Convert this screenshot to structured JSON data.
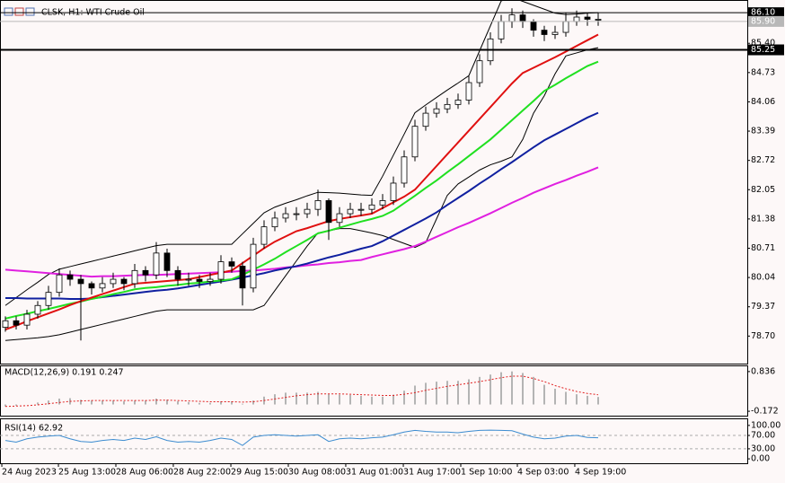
{
  "chart_data": [
    {
      "type": "candlestick",
      "title": "CLSK, H1: WTI Crude Oil",
      "open": [
        78.9,
        79.05,
        78.95,
        79.2,
        79.4,
        79.7,
        80.1,
        80.0,
        79.9,
        79.8,
        79.9,
        80.0,
        79.9,
        80.2,
        80.1,
        80.6,
        80.2,
        80.0,
        80.0,
        79.95,
        80.0,
        80.4,
        80.3,
        79.8,
        80.8,
        81.2,
        81.4,
        81.5,
        81.5,
        81.6,
        81.8,
        81.3,
        81.5,
        81.6,
        81.6,
        81.7,
        81.8,
        82.2,
        82.8,
        83.5,
        83.8,
        83.9,
        84.0,
        84.1,
        84.5,
        85.0,
        85.5,
        85.9,
        86.05,
        85.9,
        85.7,
        85.6,
        85.65,
        85.9,
        86.0,
        85.95
      ],
      "high": [
        79.15,
        79.15,
        79.3,
        79.5,
        79.85,
        80.25,
        80.2,
        80.1,
        79.95,
        80.05,
        80.15,
        80.05,
        80.35,
        80.3,
        80.85,
        80.7,
        80.3,
        80.15,
        80.1,
        80.15,
        80.55,
        80.5,
        80.4,
        80.95,
        81.35,
        81.55,
        81.65,
        81.65,
        81.75,
        82.05,
        81.85,
        81.65,
        81.75,
        81.75,
        81.85,
        81.95,
        82.35,
        82.95,
        83.65,
        83.95,
        84.05,
        84.15,
        84.25,
        84.65,
        85.15,
        85.65,
        86.05,
        86.2,
        86.15,
        85.95,
        85.8,
        85.8,
        86.1,
        86.15,
        86.1,
        86.1
      ],
      "low": [
        78.8,
        78.85,
        78.85,
        79.1,
        79.3,
        79.6,
        79.85,
        78.6,
        79.65,
        79.7,
        79.8,
        79.75,
        79.8,
        79.95,
        80.0,
        80.05,
        79.85,
        79.85,
        79.8,
        79.85,
        79.9,
        80.15,
        79.4,
        79.7,
        80.7,
        81.1,
        81.3,
        81.35,
        81.4,
        81.45,
        80.9,
        81.2,
        81.4,
        81.45,
        81.5,
        81.6,
        81.7,
        82.1,
        82.7,
        83.4,
        83.7,
        83.8,
        83.9,
        84.0,
        84.4,
        84.9,
        85.4,
        85.75,
        85.75,
        85.55,
        85.45,
        85.5,
        85.55,
        85.8,
        85.8,
        85.8
      ],
      "close": [
        79.05,
        78.95,
        79.2,
        79.4,
        79.7,
        80.1,
        80.0,
        79.9,
        79.8,
        79.9,
        80.0,
        79.9,
        80.2,
        80.1,
        80.6,
        80.2,
        80.0,
        80.0,
        79.95,
        80.0,
        80.4,
        80.3,
        79.8,
        80.8,
        81.2,
        81.4,
        81.5,
        81.5,
        81.6,
        81.8,
        81.3,
        81.5,
        81.6,
        81.6,
        81.7,
        81.8,
        82.2,
        82.8,
        83.5,
        83.8,
        83.9,
        84.0,
        84.1,
        84.5,
        85.0,
        85.5,
        85.9,
        86.05,
        85.9,
        85.7,
        85.6,
        85.65,
        85.9,
        86.0,
        85.95,
        85.95
      ],
      "up_color": "#ffffff",
      "down_color": "#000000",
      "series": [
        {
          "color": "#000000",
          "width": 1,
          "values": [
            79.4,
            79.58,
            79.76,
            79.93,
            80.11,
            80.23,
            80.29,
            80.35,
            80.41,
            80.47,
            80.53,
            80.59,
            80.65,
            80.71,
            80.77,
            80.8,
            80.8,
            80.8,
            80.8,
            80.8,
            80.8,
            80.8,
            81.04,
            81.28,
            81.52,
            81.65,
            81.74,
            81.82,
            81.91,
            81.99,
            81.98,
            81.97,
            81.95,
            81.93,
            81.92,
            82.36,
            82.84,
            83.32,
            83.81,
            83.99,
            84.16,
            84.33,
            84.49,
            84.66,
            85.23,
            85.8,
            86.37,
            86.45,
            86.36,
            86.27,
            86.18,
            86.09,
            86.06,
            86.07,
            86.09,
            86.1
          ]
        },
        {
          "color": "#000000",
          "width": 1,
          "values": [
            78.6,
            78.62,
            78.64,
            78.66,
            78.69,
            78.73,
            78.79,
            78.85,
            78.91,
            78.97,
            79.03,
            79.09,
            79.15,
            79.21,
            79.27,
            79.3,
            79.3,
            79.3,
            79.3,
            79.3,
            79.3,
            79.3,
            79.3,
            79.3,
            79.4,
            79.74,
            80.08,
            80.42,
            80.76,
            81.06,
            81.11,
            81.16,
            81.16,
            81.11,
            81.06,
            81.0,
            80.91,
            80.82,
            80.73,
            80.84,
            81.38,
            81.92,
            82.18,
            82.34,
            82.5,
            82.62,
            82.7,
            82.8,
            83.2,
            83.8,
            84.2,
            84.7,
            85.11,
            85.18,
            85.25,
            85.3
          ]
        },
        {
          "color": "#e020e0",
          "width": 2,
          "values": [
            80.22,
            80.2,
            80.18,
            80.16,
            80.14,
            80.12,
            80.1,
            80.08,
            80.06,
            80.07,
            80.07,
            80.08,
            80.09,
            80.1,
            80.1,
            80.11,
            80.12,
            80.13,
            80.14,
            80.15,
            80.16,
            80.17,
            80.19,
            80.2,
            80.22,
            80.24,
            80.27,
            80.29,
            80.32,
            80.34,
            80.37,
            80.39,
            80.42,
            80.44,
            80.51,
            80.57,
            80.63,
            80.69,
            80.76,
            80.86,
            80.97,
            81.08,
            81.19,
            81.29,
            81.4,
            81.51,
            81.63,
            81.75,
            81.86,
            81.98,
            82.08,
            82.18,
            82.27,
            82.37,
            82.46,
            82.56
          ]
        },
        {
          "color": "#1020a0",
          "width": 2,
          "values": [
            79.57,
            79.57,
            79.56,
            79.56,
            79.56,
            79.56,
            79.55,
            79.55,
            79.56,
            79.59,
            79.62,
            79.65,
            79.68,
            79.71,
            79.74,
            79.76,
            79.79,
            79.83,
            79.87,
            79.91,
            79.95,
            79.99,
            80.04,
            80.09,
            80.14,
            80.2,
            80.25,
            80.3,
            80.36,
            80.43,
            80.5,
            80.56,
            80.63,
            80.7,
            80.76,
            80.87,
            81.0,
            81.13,
            81.26,
            81.39,
            81.53,
            81.7,
            81.86,
            82.02,
            82.19,
            82.35,
            82.52,
            82.68,
            82.85,
            83.02,
            83.18,
            83.31,
            83.44,
            83.57,
            83.7,
            83.81
          ]
        },
        {
          "color": "#20e020",
          "width": 2,
          "values": [
            79.1,
            79.16,
            79.21,
            79.27,
            79.32,
            79.38,
            79.44,
            79.49,
            79.55,
            79.6,
            79.66,
            79.71,
            79.77,
            79.8,
            79.82,
            79.85,
            79.87,
            79.9,
            79.92,
            79.95,
            79.97,
            80.0,
            80.1,
            80.22,
            80.34,
            80.47,
            80.62,
            80.76,
            80.9,
            81.05,
            81.11,
            81.18,
            81.25,
            81.32,
            81.38,
            81.45,
            81.57,
            81.74,
            81.91,
            82.09,
            82.26,
            82.45,
            82.63,
            82.82,
            83.01,
            83.2,
            83.42,
            83.64,
            83.86,
            84.08,
            84.31,
            84.45,
            84.6,
            84.74,
            84.88,
            84.98
          ]
        },
        {
          "color": "#e01010",
          "width": 2,
          "values": [
            78.85,
            78.94,
            79.04,
            79.13,
            79.22,
            79.31,
            79.41,
            79.5,
            79.58,
            79.66,
            79.74,
            79.82,
            79.9,
            79.92,
            79.94,
            79.96,
            79.98,
            80.0,
            80.05,
            80.1,
            80.15,
            80.2,
            80.37,
            80.54,
            80.71,
            80.86,
            80.98,
            81.1,
            81.17,
            81.25,
            81.33,
            81.38,
            81.42,
            81.46,
            81.5,
            81.63,
            81.76,
            81.89,
            82.05,
            82.32,
            82.59,
            82.86,
            83.13,
            83.4,
            83.67,
            83.94,
            84.21,
            84.48,
            84.72,
            84.84,
            84.96,
            85.08,
            85.21,
            85.34,
            85.47,
            85.6
          ]
        }
      ],
      "ylim": [
        78.07,
        86.37
      ],
      "yticks": [
        {
          "value": 85.4,
          "label": "85.40"
        },
        84.73,
        84.06,
        83.39,
        82.72,
        82.05,
        81.38,
        80.71,
        80.04,
        79.37,
        {
          "value": 78.7,
          "label": "78.70"
        }
      ],
      "price_labels": [
        {
          "value": 86.1,
          "label": "86.10",
          "color": "#000000",
          "text_color": "#ffffff"
        },
        {
          "value": 85.9,
          "label": "85.90",
          "color": "#b8b8b8",
          "text_color": "#ffffff"
        },
        {
          "value": 85.25,
          "label": "85.25",
          "color": "#000000",
          "text_color": "#ffffff"
        }
      ],
      "xticks": [
        {
          "value": -0.33,
          "label": "24 Aug 2023"
        },
        {
          "value": 4.92,
          "label": "25 Aug 13:00"
        },
        {
          "value": 10.25,
          "label": "28 Aug 06:00"
        },
        {
          "value": 15.58,
          "label": "28 Aug 22:00"
        },
        {
          "value": 20.92,
          "label": "29 Aug 15:00"
        },
        {
          "value": 26.25,
          "label": "30 Aug 08:00"
        },
        {
          "value": 31.58,
          "label": "31 Aug 01:00"
        },
        {
          "value": 36.92,
          "label": "31 Aug 17:00"
        },
        {
          "value": 42.25,
          "label": "1 Sep 10:00"
        },
        {
          "value": 47.5,
          "label": "4 Sep 03:00"
        },
        {
          "value": 52.83,
          "label": "4 Sep 19:00"
        }
      ]
    },
    {
      "type": "macd",
      "title": "MACD(12,26,9) 0.191 0.247",
      "color": "#b4b4b4",
      "signal_color": "#e02020",
      "values": [
        -0.05,
        -0.03,
        0.0,
        0.05,
        0.1,
        0.15,
        0.16,
        0.12,
        0.1,
        0.1,
        0.1,
        0.08,
        0.1,
        0.1,
        0.15,
        0.12,
        0.08,
        0.06,
        0.04,
        0.04,
        0.08,
        0.08,
        0.02,
        0.1,
        0.2,
        0.26,
        0.3,
        0.3,
        0.3,
        0.32,
        0.26,
        0.25,
        0.24,
        0.22,
        0.2,
        0.2,
        0.25,
        0.35,
        0.48,
        0.55,
        0.58,
        0.6,
        0.6,
        0.64,
        0.7,
        0.76,
        0.82,
        0.84,
        0.8,
        0.7,
        0.5,
        0.4,
        0.32,
        0.26,
        0.22,
        0.191
      ],
      "signal": [
        -0.05,
        -0.04,
        -0.03,
        -0.01,
        0.02,
        0.05,
        0.08,
        0.09,
        0.1,
        0.1,
        0.1,
        0.1,
        0.1,
        0.1,
        0.11,
        0.11,
        0.1,
        0.09,
        0.08,
        0.07,
        0.07,
        0.07,
        0.06,
        0.07,
        0.1,
        0.14,
        0.18,
        0.22,
        0.25,
        0.27,
        0.27,
        0.27,
        0.26,
        0.25,
        0.24,
        0.23,
        0.23,
        0.26,
        0.3,
        0.36,
        0.41,
        0.46,
        0.5,
        0.54,
        0.58,
        0.63,
        0.68,
        0.72,
        0.72,
        0.66,
        0.58,
        0.48,
        0.4,
        0.33,
        0.28,
        0.247
      ],
      "ylim": [
        -0.284,
        0.97
      ],
      "yticks": [
        0.836,
        -0.172
      ]
    },
    {
      "type": "rsi",
      "title": "RSI(14) 62.92",
      "color": "#3c8cd0",
      "values": [
        55,
        50,
        60,
        65,
        68,
        70,
        60,
        52,
        50,
        55,
        58,
        55,
        62,
        58,
        66,
        55,
        50,
        52,
        50,
        55,
        62,
        58,
        40,
        65,
        70,
        72,
        70,
        68,
        70,
        72,
        52,
        60,
        62,
        60,
        63,
        65,
        72,
        80,
        85,
        82,
        80,
        80,
        78,
        82,
        85,
        86,
        85,
        84,
        74,
        65,
        60,
        62,
        68,
        70,
        64,
        62.92
      ],
      "ylim": [
        -13.2,
        118.4
      ],
      "yticks": [
        {
          "value": 100,
          "label": "100.00"
        },
        {
          "value": 70,
          "label": "70.00"
        },
        {
          "value": 30,
          "label": "30.00"
        },
        {
          "value": 0,
          "label": "0.00"
        }
      ],
      "levels": [
        70,
        30
      ]
    }
  ]
}
